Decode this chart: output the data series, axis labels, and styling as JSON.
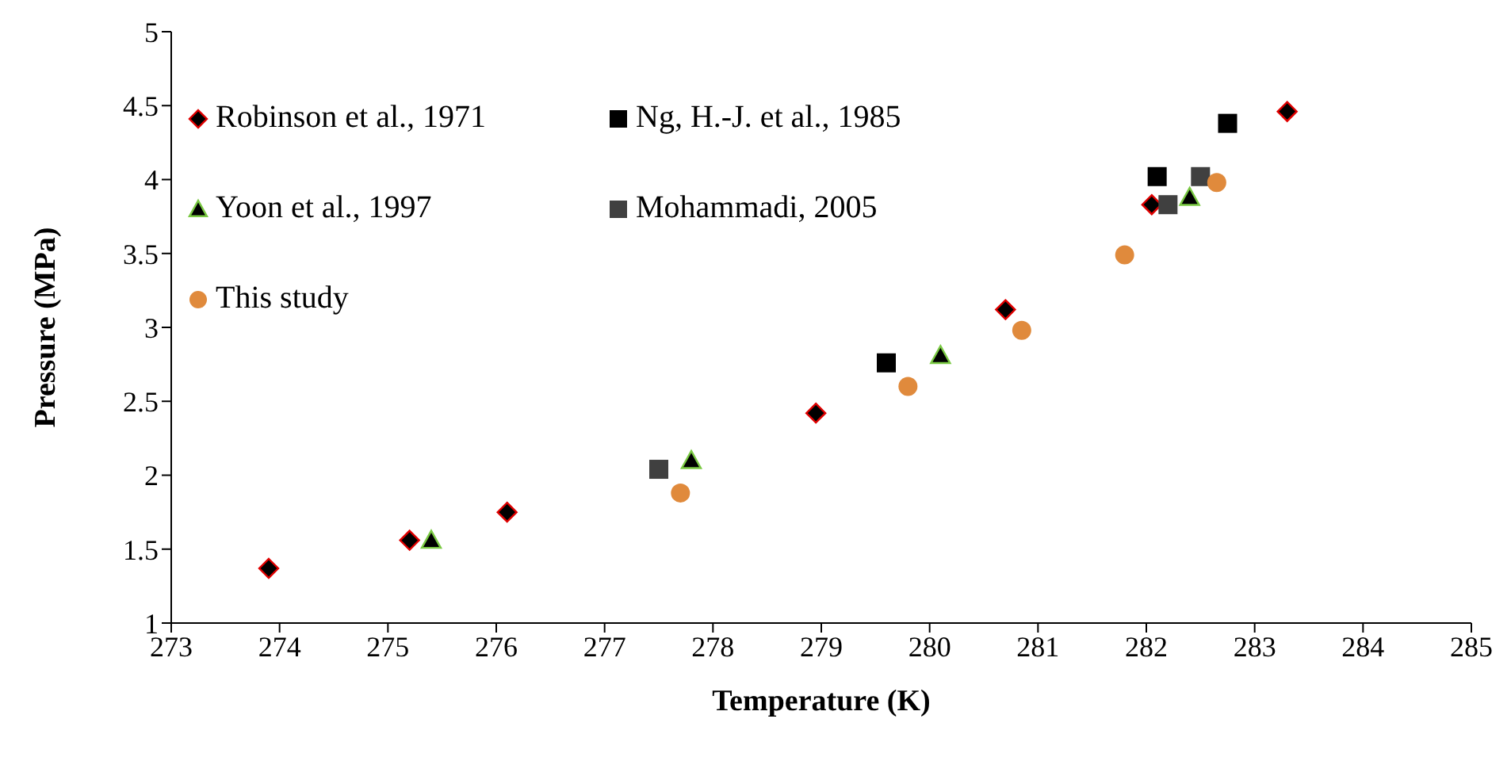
{
  "chart_data": {
    "type": "scatter",
    "xlabel": "Temperature (K)",
    "ylabel": "Pressure (MPa)",
    "xlim": [
      273,
      285
    ],
    "xticks": [
      273,
      274,
      275,
      276,
      277,
      278,
      279,
      280,
      281,
      282,
      283,
      284,
      285
    ],
    "ylim": [
      1,
      5
    ],
    "yticks": [
      1,
      1.5,
      2,
      2.5,
      3,
      3.5,
      4,
      4.5,
      5
    ],
    "grid": false,
    "legend": "top left",
    "series": [
      {
        "name": "Robinson et al., 1971",
        "color": "#000000",
        "marker": "diamond",
        "x": [
          273.9,
          275.2,
          276.1,
          278.95,
          280.7,
          282.05,
          283.3
        ],
        "values": [
          1.37,
          1.56,
          1.75,
          2.42,
          3.12,
          3.83,
          4.46
        ]
      },
      {
        "name": "Ng, H.-J. et al., 1985",
        "color": "#000000",
        "marker": "square",
        "x": [
          279.6,
          282.1,
          282.75
        ],
        "values": [
          2.76,
          4.02,
          4.38
        ]
      },
      {
        "name": "Yoon et al., 1997",
        "color": "#000000",
        "marker": "triangle",
        "x": [
          275.4,
          277.8,
          280.1,
          282.4
        ],
        "values": [
          1.56,
          2.1,
          2.81,
          3.88
        ]
      },
      {
        "name": "Mohammadi, 2005",
        "color": "#404040",
        "marker": "square",
        "x": [
          277.5,
          282.2,
          282.5
        ],
        "values": [
          2.04,
          3.83,
          4.02
        ]
      },
      {
        "name": "This study",
        "color": "#e08a3c",
        "marker": "circle",
        "x": [
          277.7,
          279.8,
          280.85,
          281.8,
          282.65
        ],
        "values": [
          1.88,
          2.6,
          2.98,
          3.49,
          3.98
        ]
      }
    ]
  }
}
